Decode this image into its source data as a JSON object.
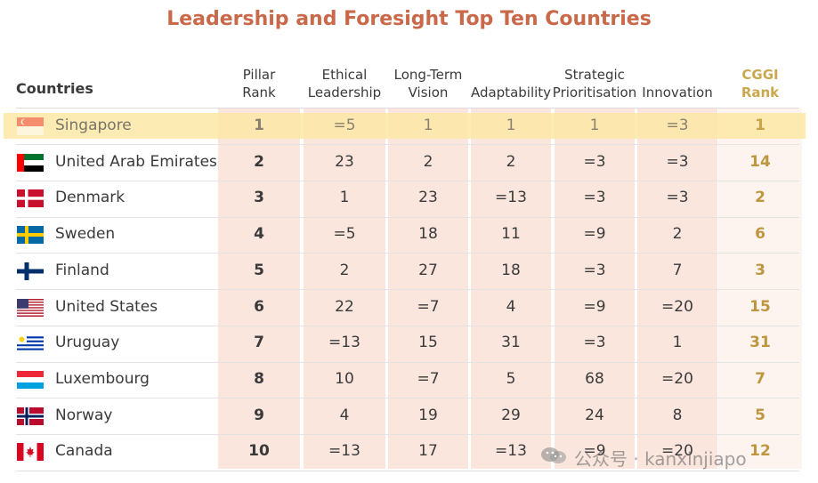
{
  "chart_data": {
    "type": "table",
    "title": "Leadership and Foresight Top Ten Countries",
    "columns": [
      {
        "key": "country",
        "label": "Countries"
      },
      {
        "key": "pillar",
        "label": [
          "Pillar",
          "Rank"
        ]
      },
      {
        "key": "ethical",
        "label": [
          "Ethical",
          "Leadership"
        ]
      },
      {
        "key": "longterm",
        "label": [
          "Long-Term",
          "Vision"
        ]
      },
      {
        "key": "adapt",
        "label": [
          "Adaptability"
        ]
      },
      {
        "key": "strategic",
        "label": [
          "Strategic",
          "Prioritisation"
        ]
      },
      {
        "key": "innovation",
        "label": [
          "Innovation"
        ]
      },
      {
        "key": "cggi",
        "label": [
          "CGGI",
          "Rank"
        ]
      }
    ],
    "rows": [
      {
        "country": "Singapore",
        "flag": "singapore-flag",
        "pillar": "1",
        "ethical": "=5",
        "longterm": "1",
        "adapt": "1",
        "strategic": "1",
        "innovation": "=3",
        "cggi": "1",
        "highlight": true
      },
      {
        "country": "United Arab Emirates",
        "flag": "uae-flag",
        "pillar": "2",
        "ethical": "23",
        "longterm": "2",
        "adapt": "2",
        "strategic": "=3",
        "innovation": "=3",
        "cggi": "14"
      },
      {
        "country": "Denmark",
        "flag": "denmark-flag",
        "pillar": "3",
        "ethical": "1",
        "longterm": "23",
        "adapt": "=13",
        "strategic": "=3",
        "innovation": "=3",
        "cggi": "2"
      },
      {
        "country": "Sweden",
        "flag": "sweden-flag",
        "pillar": "4",
        "ethical": "=5",
        "longterm": "18",
        "adapt": "11",
        "strategic": "=9",
        "innovation": "2",
        "cggi": "6"
      },
      {
        "country": "Finland",
        "flag": "finland-flag",
        "pillar": "5",
        "ethical": "2",
        "longterm": "27",
        "adapt": "18",
        "strategic": "=3",
        "innovation": "7",
        "cggi": "3"
      },
      {
        "country": "United States",
        "flag": "usa-flag",
        "pillar": "6",
        "ethical": "22",
        "longterm": "=7",
        "adapt": "4",
        "strategic": "=9",
        "innovation": "=20",
        "cggi": "15"
      },
      {
        "country": "Uruguay",
        "flag": "uruguay-flag",
        "pillar": "7",
        "ethical": "=13",
        "longterm": "15",
        "adapt": "31",
        "strategic": "=3",
        "innovation": "1",
        "cggi": "31"
      },
      {
        "country": "Luxembourg",
        "flag": "luxembourg-flag",
        "pillar": "8",
        "ethical": "10",
        "longterm": "=7",
        "adapt": "5",
        "strategic": "68",
        "innovation": "=20",
        "cggi": "7"
      },
      {
        "country": "Norway",
        "flag": "norway-flag",
        "pillar": "9",
        "ethical": "4",
        "longterm": "19",
        "adapt": "29",
        "strategic": "24",
        "innovation": "8",
        "cggi": "5"
      },
      {
        "country": "Canada",
        "flag": "canada-flag",
        "pillar": "10",
        "ethical": "=13",
        "longterm": "17",
        "adapt": "=13",
        "strategic": "=9",
        "innovation": "=20",
        "cggi": "12"
      }
    ]
  },
  "colors": {
    "title": "#c9694a",
    "cggi": "#bf9640",
    "column_shade": "#fbe6de",
    "highlight_row": "#fbe8a6"
  },
  "watermark": {
    "icon": "wechat-icon",
    "text": "公众号 · kanxinjiapo"
  }
}
